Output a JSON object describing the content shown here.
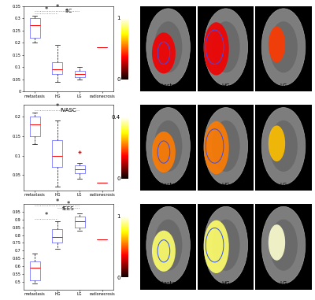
{
  "chart_data": [
    {
      "type": "box",
      "title": "fIC",
      "categories": [
        "metastasis",
        "HG",
        "LG",
        "radionecrosis"
      ],
      "boxes": [
        {
          "med": 0.27,
          "q1": 0.22,
          "q3": 0.3,
          "whislo": 0.2,
          "whishi": 0.31,
          "fliers": []
        },
        {
          "med": 0.09,
          "q1": 0.07,
          "q3": 0.12,
          "whislo": 0.04,
          "whishi": 0.19,
          "fliers": []
        },
        {
          "med": 0.07,
          "q1": 0.06,
          "q3": 0.085,
          "whislo": 0.05,
          "whishi": 0.1,
          "fliers": []
        },
        {
          "med": 0.18,
          "q1": 0.18,
          "q3": 0.18,
          "whislo": 0.18,
          "whishi": 0.18,
          "fliers": []
        }
      ],
      "significance": [
        {
          "from": "metastasis",
          "to": "HG",
          "label": "*"
        },
        {
          "from": "metastasis",
          "to": "LG",
          "label": "*"
        }
      ],
      "ylim": [
        0,
        0.35
      ],
      "yticks": [
        0,
        0.05,
        0.1,
        0.15,
        0.2,
        0.25,
        0.3,
        0.35
      ]
    },
    {
      "type": "box",
      "title": "fVASC",
      "categories": [
        "metastasis",
        "HG",
        "LG",
        "radionecrosis"
      ],
      "boxes": [
        {
          "med": 0.18,
          "q1": 0.15,
          "q3": 0.2,
          "whislo": 0.13,
          "whishi": 0.21,
          "fliers": []
        },
        {
          "med": 0.1,
          "q1": 0.07,
          "q3": 0.14,
          "whislo": 0.02,
          "whishi": 0.19,
          "fliers": []
        },
        {
          "med": 0.065,
          "q1": 0.055,
          "q3": 0.075,
          "whislo": 0.04,
          "whishi": 0.08,
          "fliers": [
            0.11
          ]
        },
        {
          "med": 0.03,
          "q1": 0.03,
          "q3": 0.03,
          "whislo": 0.03,
          "whishi": 0.03,
          "fliers": []
        }
      ],
      "significance": [
        {
          "from": "metastasis",
          "to": "LG",
          "label": "*"
        }
      ],
      "ylim": [
        0.01,
        0.23
      ],
      "yticks": [
        0.05,
        0.1,
        0.15,
        0.2
      ]
    },
    {
      "type": "box",
      "title": "fEES",
      "categories": [
        "metastasis",
        "HG",
        "LG",
        "radionecrosis"
      ],
      "boxes": [
        {
          "med": 0.59,
          "q1": 0.51,
          "q3": 0.63,
          "whislo": 0.49,
          "whishi": 0.68,
          "fliers": []
        },
        {
          "med": 0.79,
          "q1": 0.75,
          "q3": 0.84,
          "whislo": 0.71,
          "whishi": 0.89,
          "fliers": []
        },
        {
          "med": 0.89,
          "q1": 0.85,
          "q3": 0.92,
          "whislo": 0.83,
          "whishi": 0.94,
          "fliers": []
        },
        {
          "med": 0.77,
          "q1": 0.77,
          "q3": 0.77,
          "whislo": 0.77,
          "whishi": 0.77,
          "fliers": []
        }
      ],
      "significance": [
        {
          "from": "metastasis",
          "to": "HG",
          "label": "*"
        },
        {
          "from": "HG",
          "to": "LG",
          "label": "*"
        },
        {
          "from": "metastasis",
          "to": "LG",
          "label": "*"
        }
      ],
      "ylim": [
        0.45,
        1.0
      ],
      "yticks": [
        0.5,
        0.55,
        0.6,
        0.65,
        0.7,
        0.75,
        0.8,
        0.85,
        0.9,
        0.95
      ]
    }
  ],
  "image_panels": {
    "labels": [
      "metastasis",
      "HG",
      "LG"
    ],
    "colorbars": [
      {
        "range": [
          0,
          1
        ],
        "ticks": [
          0,
          1
        ]
      },
      {
        "range": [
          0,
          0.4
        ],
        "ticks": [
          0,
          0.4
        ]
      },
      {
        "range": [
          0,
          1
        ],
        "ticks": [
          0,
          1
        ]
      }
    ]
  }
}
